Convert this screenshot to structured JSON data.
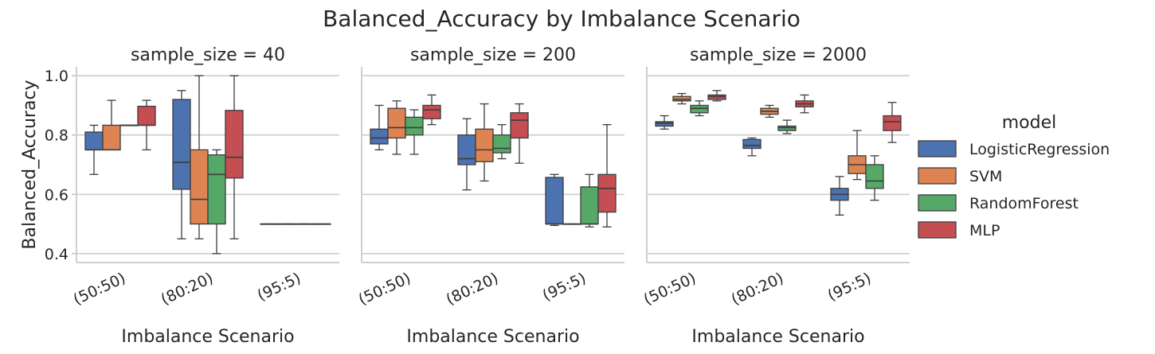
{
  "chart_data": {
    "type": "boxplot",
    "title": "Balanced_Accuracy by Imbalance Scenario",
    "xlabel": "Imbalance Scenario",
    "ylabel": "Balanced_Accuracy",
    "ylim": [
      0.37,
      1.03
    ],
    "yticks": [
      "0.4",
      "0.6",
      "0.8",
      "1.0"
    ],
    "categories": [
      "(50:50)",
      "(80:20)",
      "(95:5)"
    ],
    "grid": "horizontal",
    "legend": {
      "title": "model",
      "placement": "right",
      "items": [
        "LogisticRegression",
        "SVM",
        "RandomForest",
        "MLP"
      ]
    },
    "colors": {
      "LogisticRegression": "#4C72B0",
      "SVM": "#DD8452",
      "RandomForest": "#55A868",
      "MLP": "#C44E52"
    },
    "facets": [
      {
        "title": "sample_size = 40",
        "series": [
          {
            "name": "LogisticRegression",
            "boxes": [
              {
                "min": 0.667,
                "q1": 0.75,
                "median": 0.75,
                "q3": 0.81,
                "max": 0.833
              },
              {
                "min": 0.45,
                "q1": 0.617,
                "median": 0.708,
                "q3": 0.92,
                "max": 0.95
              },
              {
                "min": 0.5,
                "q1": 0.5,
                "median": 0.5,
                "q3": 0.5,
                "max": 0.5
              }
            ]
          },
          {
            "name": "SVM",
            "boxes": [
              {
                "min": 0.75,
                "q1": 0.75,
                "median": 0.75,
                "q3": 0.833,
                "max": 0.917
              },
              {
                "min": 0.45,
                "q1": 0.5,
                "median": 0.583,
                "q3": 0.75,
                "max": 1.0
              },
              {
                "min": 0.5,
                "q1": 0.5,
                "median": 0.5,
                "q3": 0.5,
                "max": 0.5
              }
            ]
          },
          {
            "name": "RandomForest",
            "boxes": [
              {
                "min": 0.833,
                "q1": 0.833,
                "median": 0.833,
                "q3": 0.833,
                "max": 0.833
              },
              {
                "min": 0.4,
                "q1": 0.5,
                "median": 0.667,
                "q3": 0.733,
                "max": 0.75
              },
              {
                "min": 0.5,
                "q1": 0.5,
                "median": 0.5,
                "q3": 0.5,
                "max": 0.5
              }
            ]
          },
          {
            "name": "MLP",
            "boxes": [
              {
                "min": 0.75,
                "q1": 0.833,
                "median": 0.833,
                "q3": 0.897,
                "max": 0.917
              },
              {
                "min": 0.45,
                "q1": 0.655,
                "median": 0.725,
                "q3": 0.883,
                "max": 1.0
              },
              {
                "min": 0.5,
                "q1": 0.5,
                "median": 0.5,
                "q3": 0.5,
                "max": 0.5
              }
            ]
          }
        ]
      },
      {
        "title": "sample_size = 200",
        "series": [
          {
            "name": "LogisticRegression",
            "boxes": [
              {
                "min": 0.75,
                "q1": 0.77,
                "median": 0.79,
                "q3": 0.82,
                "max": 0.9
              },
              {
                "min": 0.615,
                "q1": 0.7,
                "median": 0.72,
                "q3": 0.8,
                "max": 0.855
              },
              {
                "min": 0.495,
                "q1": 0.5,
                "median": 0.5,
                "q3": 0.657,
                "max": 0.667
              }
            ]
          },
          {
            "name": "SVM",
            "boxes": [
              {
                "min": 0.735,
                "q1": 0.79,
                "median": 0.825,
                "q3": 0.89,
                "max": 0.915
              },
              {
                "min": 0.645,
                "q1": 0.71,
                "median": 0.75,
                "q3": 0.82,
                "max": 0.905
              },
              {
                "min": 0.5,
                "q1": 0.5,
                "median": 0.5,
                "q3": 0.5,
                "max": 0.5
              }
            ]
          },
          {
            "name": "RandomForest",
            "boxes": [
              {
                "min": 0.735,
                "q1": 0.8,
                "median": 0.825,
                "q3": 0.86,
                "max": 0.885
              },
              {
                "min": 0.72,
                "q1": 0.74,
                "median": 0.755,
                "q3": 0.8,
                "max": 0.835
              },
              {
                "min": 0.49,
                "q1": 0.5,
                "median": 0.5,
                "q3": 0.625,
                "max": 0.667
              }
            ]
          },
          {
            "name": "MLP",
            "boxes": [
              {
                "min": 0.835,
                "q1": 0.855,
                "median": 0.885,
                "q3": 0.9,
                "max": 0.935
              },
              {
                "min": 0.705,
                "q1": 0.79,
                "median": 0.85,
                "q3": 0.875,
                "max": 0.905
              },
              {
                "min": 0.49,
                "q1": 0.54,
                "median": 0.62,
                "q3": 0.667,
                "max": 0.835
              }
            ]
          }
        ]
      },
      {
        "title": "sample_size = 2000",
        "series": [
          {
            "name": "LogisticRegression",
            "boxes": [
              {
                "min": 0.82,
                "q1": 0.83,
                "median": 0.84,
                "q3": 0.845,
                "max": 0.865
              },
              {
                "min": 0.73,
                "q1": 0.755,
                "median": 0.765,
                "q3": 0.785,
                "max": 0.79
              },
              {
                "min": 0.53,
                "q1": 0.58,
                "median": 0.6,
                "q3": 0.62,
                "max": 0.66
              }
            ]
          },
          {
            "name": "SVM",
            "boxes": [
              {
                "min": 0.905,
                "q1": 0.915,
                "median": 0.92,
                "q3": 0.93,
                "max": 0.94
              },
              {
                "min": 0.86,
                "q1": 0.87,
                "median": 0.88,
                "q3": 0.89,
                "max": 0.9
              },
              {
                "min": 0.65,
                "q1": 0.67,
                "median": 0.7,
                "q3": 0.73,
                "max": 0.815
              }
            ]
          },
          {
            "name": "RandomForest",
            "boxes": [
              {
                "min": 0.865,
                "q1": 0.875,
                "median": 0.89,
                "q3": 0.9,
                "max": 0.915
              },
              {
                "min": 0.805,
                "q1": 0.815,
                "median": 0.825,
                "q3": 0.83,
                "max": 0.85
              },
              {
                "min": 0.58,
                "q1": 0.62,
                "median": 0.645,
                "q3": 0.7,
                "max": 0.73
              }
            ]
          },
          {
            "name": "MLP",
            "boxes": [
              {
                "min": 0.915,
                "q1": 0.92,
                "median": 0.93,
                "q3": 0.935,
                "max": 0.95
              },
              {
                "min": 0.875,
                "q1": 0.895,
                "median": 0.905,
                "q3": 0.915,
                "max": 0.935
              },
              {
                "min": 0.775,
                "q1": 0.815,
                "median": 0.845,
                "q3": 0.865,
                "max": 0.91
              }
            ]
          }
        ]
      }
    ]
  }
}
